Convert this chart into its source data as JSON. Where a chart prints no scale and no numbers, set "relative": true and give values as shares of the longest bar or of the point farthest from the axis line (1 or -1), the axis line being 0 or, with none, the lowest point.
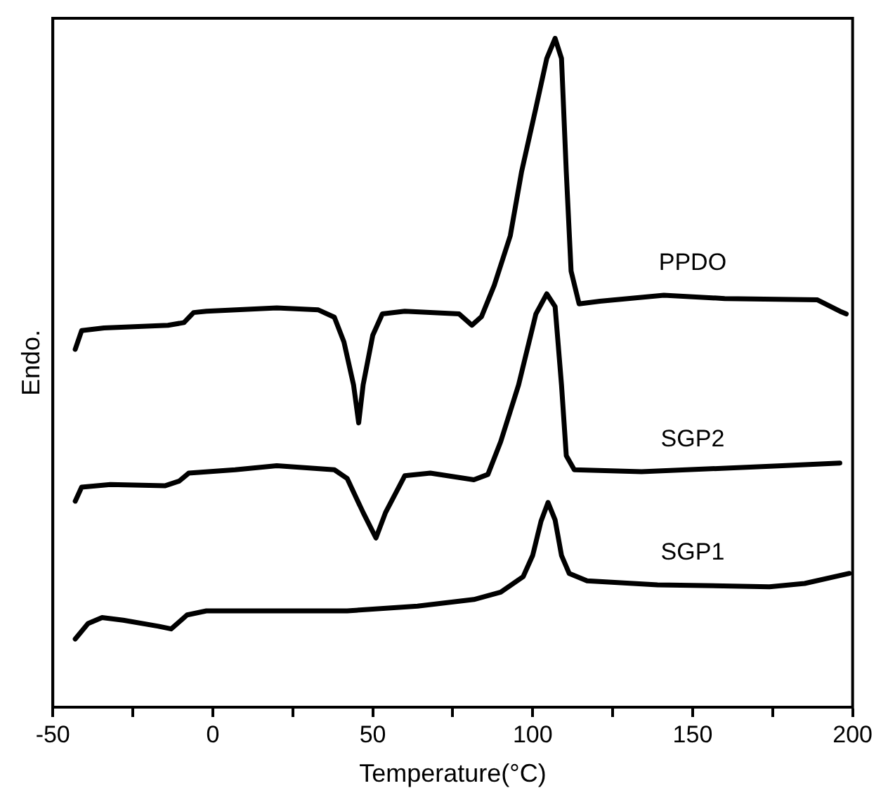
{
  "chart_data": {
    "type": "line",
    "relative": true,
    "xlabel": "Temperature(°C)",
    "ylabel": "Endo.",
    "xlim": [
      -50,
      200
    ],
    "xticks": [
      -50,
      {
        "value": -25,
        "label": null
      },
      0,
      {
        "value": 25,
        "label": null
      },
      50,
      {
        "value": 75,
        "label": null
      },
      100,
      {
        "value": 125,
        "label": null
      },
      150,
      {
        "value": 175,
        "label": null
      },
      200
    ],
    "grid": false,
    "legend": false,
    "marker": "none",
    "line_style": "solid",
    "series": [
      {
        "name": "PPDO",
        "color": "#000000",
        "x": [
          -43,
          -41,
          -34,
          -14,
          -9,
          -6,
          -2,
          20,
          33,
          38,
          41,
          44,
          45.6,
          47,
          50,
          53,
          60,
          77,
          81,
          84,
          88,
          93,
          96.5,
          101,
          104.4,
          107,
          109,
          110.5,
          112,
          114.5,
          121,
          141,
          160,
          189,
          196,
          198
        ],
        "values": [
          0.535,
          0.563,
          0.567,
          0.571,
          0.575,
          0.59,
          0.592,
          0.597,
          0.594,
          0.583,
          0.546,
          0.482,
          0.425,
          0.482,
          0.556,
          0.588,
          0.592,
          0.588,
          0.571,
          0.584,
          0.631,
          0.705,
          0.8,
          0.896,
          0.97,
          1,
          0.97,
          0.8,
          0.652,
          0.603,
          0.607,
          0.616,
          0.611,
          0.609,
          0.592,
          0.588
        ]
      },
      {
        "name": "SGP2",
        "color": "#000000",
        "x": [
          -43,
          -41,
          -32,
          -15,
          -10.5,
          -7.5,
          7,
          20,
          38,
          42,
          47,
          51,
          54,
          60,
          68,
          81.6,
          86,
          90,
          95.6,
          101,
          104.4,
          107,
          109,
          110.5,
          113,
          134,
          178,
          196
        ],
        "values": [
          0.308,
          0.329,
          0.333,
          0.331,
          0.338,
          0.35,
          0.355,
          0.361,
          0.355,
          0.342,
          0.291,
          0.253,
          0.291,
          0.346,
          0.35,
          0.34,
          0.348,
          0.397,
          0.482,
          0.588,
          0.618,
          0.599,
          0.482,
          0.376,
          0.355,
          0.352,
          0.361,
          0.365
        ]
      },
      {
        "name": "SGP1",
        "color": "#000000",
        "x": [
          -43,
          -39,
          -34.6,
          -28,
          -17,
          -13,
          -8,
          -2,
          42,
          64,
          81.6,
          90,
          97,
          100,
          102.6,
          104.8,
          107,
          109,
          111.4,
          117,
          139,
          174,
          185,
          199
        ],
        "values": [
          0.102,
          0.125,
          0.134,
          0.13,
          0.121,
          0.117,
          0.138,
          0.144,
          0.144,
          0.151,
          0.161,
          0.172,
          0.195,
          0.227,
          0.278,
          0.306,
          0.28,
          0.227,
          0.2,
          0.189,
          0.183,
          0.18,
          0.185,
          0.2
        ]
      }
    ]
  }
}
